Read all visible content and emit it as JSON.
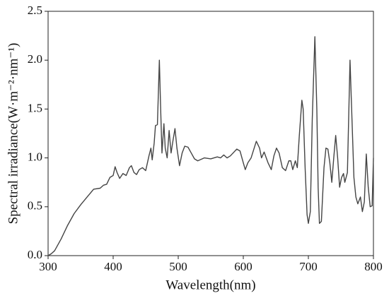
{
  "chart_data": {
    "type": "line",
    "xlabel": "Wavelength(nm)",
    "ylabel": "Spectral irradiance(W·m⁻²·nm⁻¹)",
    "xlim": [
      300,
      800
    ],
    "xticks": [
      300,
      400,
      500,
      600,
      700,
      800
    ],
    "ylim": [
      0,
      2.5
    ],
    "yticks": [
      {
        "value": 0,
        "label": "0.0"
      },
      {
        "value": 0.5,
        "label": "0.5"
      },
      {
        "value": 1,
        "label": "1.0"
      },
      {
        "value": 1.5,
        "label": "1.5"
      },
      {
        "value": 2,
        "label": "2.0"
      },
      {
        "value": 2.5,
        "label": "2.5"
      }
    ],
    "color": "#444444",
    "x": [
      300,
      305,
      310,
      320,
      330,
      340,
      350,
      360,
      370,
      380,
      385,
      390,
      395,
      400,
      403,
      406,
      410,
      415,
      420,
      425,
      428,
      432,
      436,
      440,
      445,
      450,
      455,
      458,
      460,
      463,
      465,
      468,
      471,
      473,
      475,
      478,
      480,
      483,
      486,
      489,
      492,
      495,
      498,
      502,
      506,
      510,
      515,
      520,
      525,
      530,
      540,
      550,
      560,
      565,
      570,
      575,
      580,
      590,
      595,
      600,
      603,
      607,
      612,
      620,
      625,
      628,
      632,
      638,
      643,
      647,
      651,
      655,
      660,
      665,
      670,
      673,
      676,
      680,
      683,
      686,
      690,
      692,
      695,
      698,
      700,
      703,
      706,
      710,
      713,
      715,
      717,
      720,
      724,
      727,
      730,
      733,
      736,
      739,
      742,
      745,
      748,
      751,
      754,
      756,
      760,
      764,
      767,
      770,
      773,
      776,
      780,
      783,
      786,
      789,
      792,
      795,
      798,
      800
    ],
    "values": [
      0,
      0.02,
      0.05,
      0.17,
      0.31,
      0.43,
      0.52,
      0.6,
      0.68,
      0.69,
      0.72,
      0.73,
      0.8,
      0.82,
      0.91,
      0.85,
      0.79,
      0.84,
      0.82,
      0.9,
      0.92,
      0.85,
      0.83,
      0.88,
      0.9,
      0.87,
      1.02,
      1.1,
      0.98,
      1.15,
      1.33,
      1.34,
      2.0,
      1.5,
      1.05,
      1.35,
      1.1,
      1.0,
      1.28,
      1.05,
      1.18,
      1.3,
      1.1,
      0.92,
      1.05,
      1.12,
      1.11,
      1.05,
      0.99,
      0.97,
      1.0,
      0.99,
      1.01,
      1.0,
      1.03,
      1.0,
      1.02,
      1.09,
      1.07,
      0.95,
      0.88,
      0.95,
      1.0,
      1.17,
      1.1,
      1.0,
      1.06,
      0.95,
      0.88,
      1.02,
      1.1,
      1.05,
      0.9,
      0.87,
      0.97,
      0.97,
      0.88,
      0.97,
      0.9,
      1.22,
      1.59,
      1.5,
      0.9,
      0.42,
      0.33,
      0.45,
      1.4,
      2.24,
      1.5,
      0.7,
      0.33,
      0.35,
      0.9,
      1.1,
      1.09,
      0.95,
      0.75,
      1.0,
      1.23,
      1.0,
      0.7,
      0.8,
      0.84,
      0.75,
      0.85,
      2.0,
      1.4,
      0.8,
      0.6,
      0.53,
      0.6,
      0.45,
      0.55,
      1.04,
      0.7,
      0.5,
      0.51,
      1.0
    ]
  }
}
